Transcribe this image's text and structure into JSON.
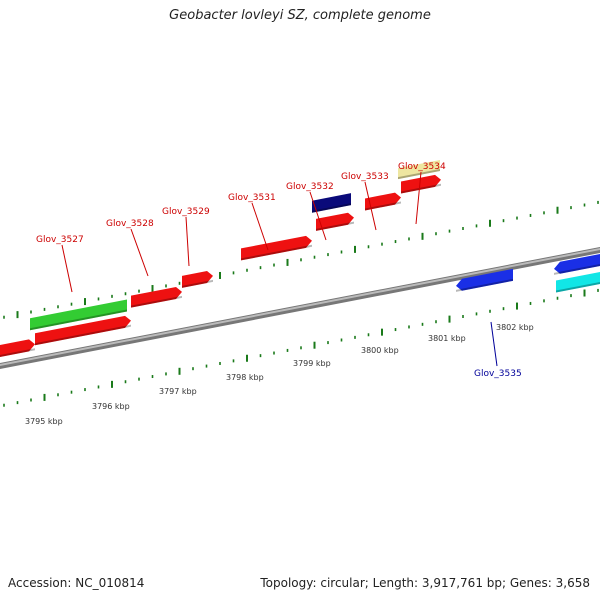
{
  "title": "Geobacter lovleyi SZ, complete genome",
  "accession": "Accession: NC_010814",
  "stats": "Topology: circular; Length: 3,917,761 bp; Genes: 3,658",
  "colors": {
    "forward_cds": "#ee1111",
    "forward_rna": "#33cc33",
    "forward_other": "#0a0a7a",
    "forward_pseudo": "#eee6a0",
    "reverse_cds": "#1a2fe6",
    "reverse_other": "#11e6e6",
    "label_forward": "#cc0000",
    "label_reverse": "#000099",
    "tick": "#1a7a1a",
    "backbone": "#888888"
  },
  "kbp_labels": [
    "3795 kbp",
    "3796 kbp",
    "3797 kbp",
    "3798 kbp",
    "3799 kbp",
    "3800 kbp",
    "3801 kbp",
    "3802 kbp"
  ],
  "gene_labels": [
    {
      "text": "Glov_3527",
      "strand": "forward"
    },
    {
      "text": "Glov_3528",
      "strand": "forward"
    },
    {
      "text": "Glov_3529",
      "strand": "forward"
    },
    {
      "text": "Glov_3531",
      "strand": "forward"
    },
    {
      "text": "Glov_3532",
      "strand": "forward"
    },
    {
      "text": "Glov_3533",
      "strand": "forward"
    },
    {
      "text": "Glov_3534",
      "strand": "forward"
    },
    {
      "text": "Glov_3535",
      "strand": "reverse"
    }
  ]
}
